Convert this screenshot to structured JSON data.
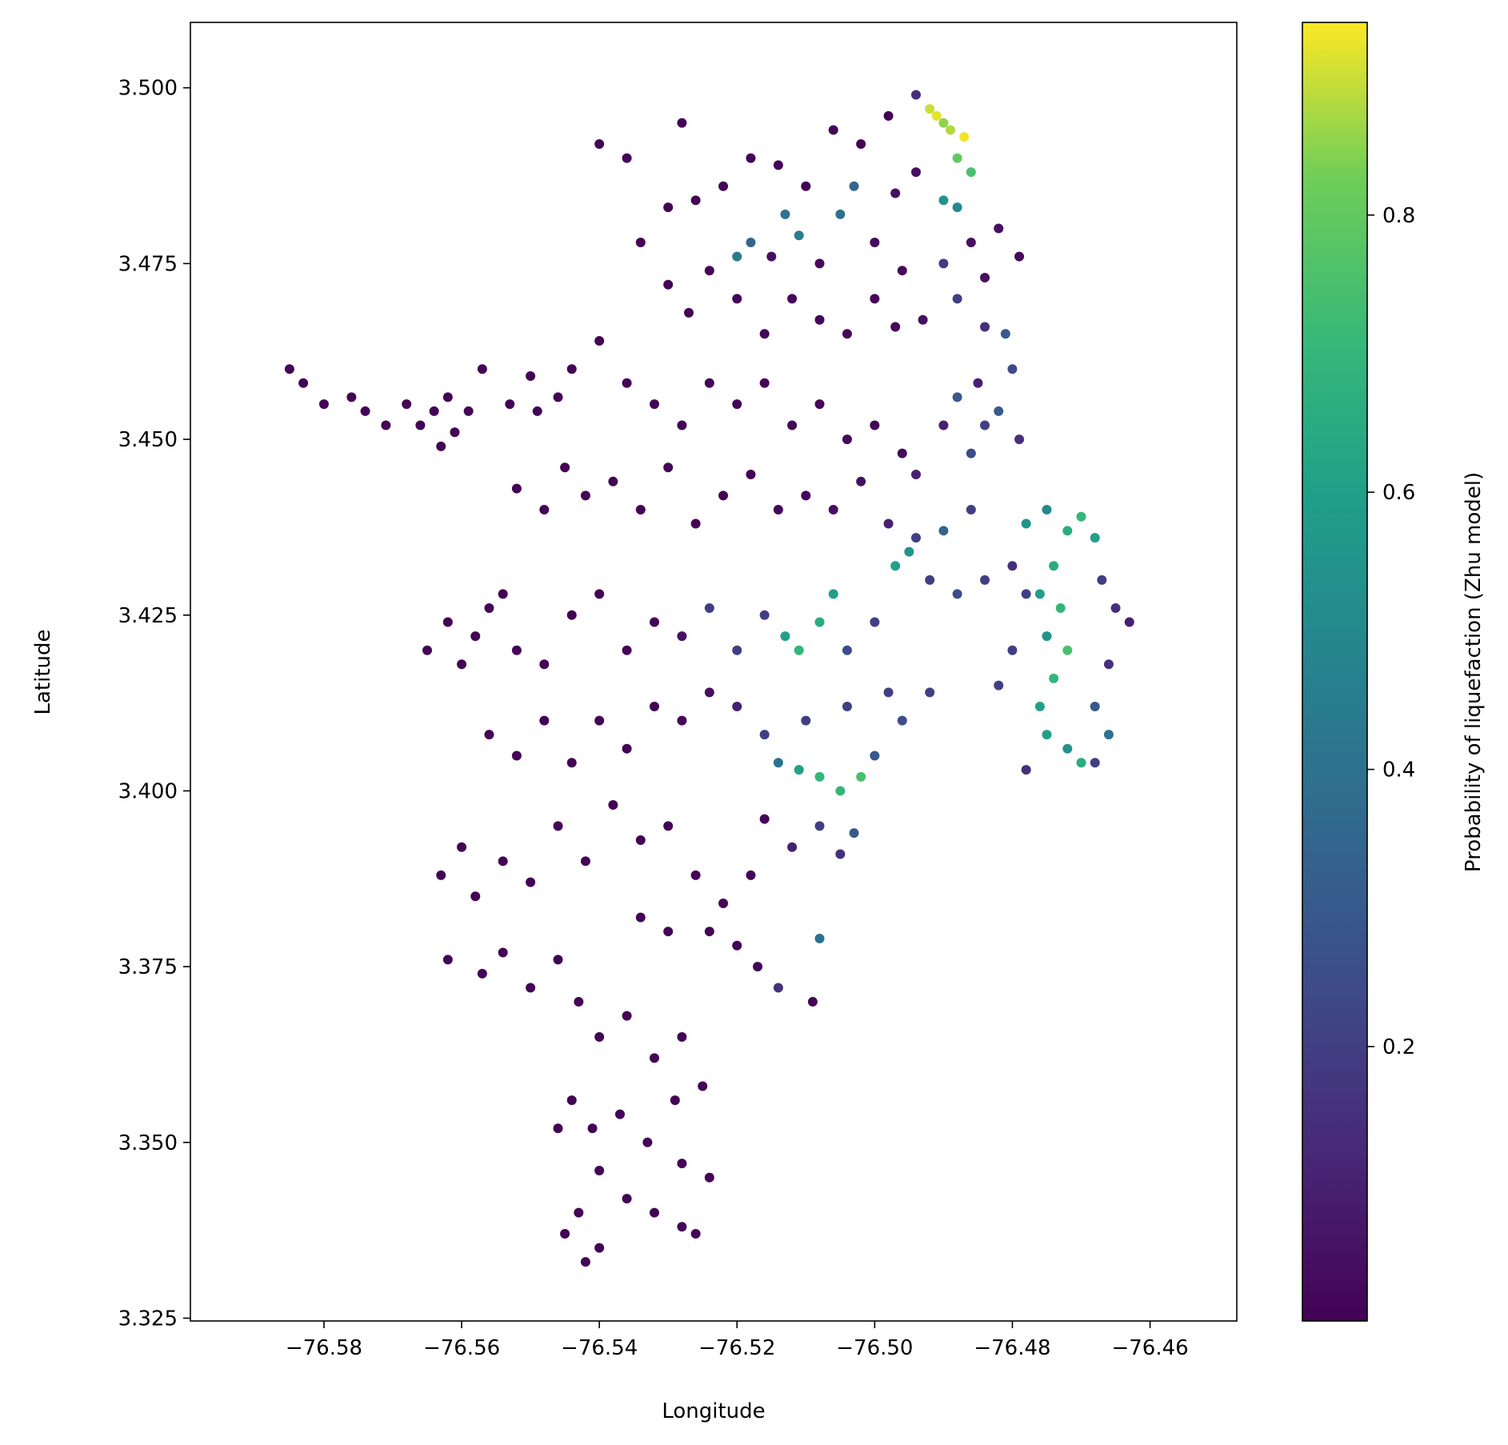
{
  "chart_data": {
    "type": "scatter",
    "title": "",
    "xlabel": "Longitude",
    "ylabel": "Latitude",
    "xlim": [
      -76.5994,
      -76.4474
    ],
    "ylim": [
      3.3246,
      3.5093
    ],
    "xticks": [
      -76.58,
      -76.56,
      -76.54,
      -76.52,
      -76.5,
      -76.48,
      -76.46
    ],
    "xtick_labels": [
      "−76.58",
      "−76.56",
      "−76.54",
      "−76.52",
      "−76.50",
      "−76.48",
      "−76.46"
    ],
    "yticks": [
      3.325,
      3.35,
      3.375,
      3.4,
      3.425,
      3.45,
      3.475,
      3.5
    ],
    "ytick_labels": [
      "3.325",
      "3.350",
      "3.375",
      "3.400",
      "3.425",
      "3.450",
      "3.475",
      "3.500"
    ],
    "grid": false,
    "colorbar": {
      "label": "Probability of liquefaction (Zhu model)",
      "colormap": "viridis",
      "range": [
        0.002,
        0.939
      ],
      "ticks": [
        0.2,
        0.4,
        0.6,
        0.8
      ],
      "tick_labels": [
        "0.2",
        "0.4",
        "0.6",
        "0.8"
      ]
    },
    "points": [
      [
        -76.585,
        3.46,
        0.01
      ],
      [
        -76.583,
        3.458,
        0.01
      ],
      [
        -76.58,
        3.455,
        0.01
      ],
      [
        -76.576,
        3.456,
        0.01
      ],
      [
        -76.574,
        3.454,
        0.01
      ],
      [
        -76.571,
        3.452,
        0.01
      ],
      [
        -76.568,
        3.455,
        0.01
      ],
      [
        -76.566,
        3.452,
        0.01
      ],
      [
        -76.564,
        3.454,
        0.01
      ],
      [
        -76.562,
        3.456,
        0.01
      ],
      [
        -76.561,
        3.451,
        0.01
      ],
      [
        -76.559,
        3.454,
        0.01
      ],
      [
        -76.563,
        3.449,
        0.01
      ],
      [
        -76.557,
        3.46,
        0.01
      ],
      [
        -76.553,
        3.455,
        0.01
      ],
      [
        -76.549,
        3.454,
        0.01
      ],
      [
        -76.546,
        3.456,
        0.01
      ],
      [
        -76.55,
        3.459,
        0.01
      ],
      [
        -76.54,
        3.492,
        0.01
      ],
      [
        -76.536,
        3.49,
        0.01
      ],
      [
        -76.528,
        3.495,
        0.01
      ],
      [
        -76.526,
        3.484,
        0.01
      ],
      [
        -76.53,
        3.483,
        0.01
      ],
      [
        -76.522,
        3.486,
        0.01
      ],
      [
        -76.518,
        3.49,
        0.01
      ],
      [
        -76.514,
        3.489,
        0.01
      ],
      [
        -76.51,
        3.486,
        0.01
      ],
      [
        -76.506,
        3.494,
        0.01
      ],
      [
        -76.502,
        3.492,
        0.01
      ],
      [
        -76.498,
        3.496,
        0.01
      ],
      [
        -76.494,
        3.499,
        0.15
      ],
      [
        -76.492,
        3.497,
        0.9
      ],
      [
        -76.491,
        3.496,
        0.92
      ],
      [
        -76.49,
        3.495,
        0.85
      ],
      [
        -76.489,
        3.494,
        0.88
      ],
      [
        -76.487,
        3.493,
        0.93
      ],
      [
        -76.488,
        3.49,
        0.8
      ],
      [
        -76.486,
        3.488,
        0.75
      ],
      [
        -76.49,
        3.484,
        0.55
      ],
      [
        -76.488,
        3.483,
        0.5
      ],
      [
        -76.494,
        3.488,
        0.05
      ],
      [
        -76.497,
        3.485,
        0.05
      ],
      [
        -76.513,
        3.482,
        0.4
      ],
      [
        -76.511,
        3.479,
        0.45
      ],
      [
        -76.505,
        3.482,
        0.4
      ],
      [
        -76.503,
        3.486,
        0.35
      ],
      [
        -76.518,
        3.478,
        0.35
      ],
      [
        -76.52,
        3.476,
        0.45
      ],
      [
        -76.515,
        3.476,
        0.05
      ],
      [
        -76.508,
        3.475,
        0.03
      ],
      [
        -76.5,
        3.478,
        0.03
      ],
      [
        -76.496,
        3.474,
        0.03
      ],
      [
        -76.49,
        3.475,
        0.2
      ],
      [
        -76.486,
        3.478,
        0.05
      ],
      [
        -76.484,
        3.473,
        0.05
      ],
      [
        -76.482,
        3.48,
        0.05
      ],
      [
        -76.479,
        3.476,
        0.03
      ],
      [
        -76.534,
        3.478,
        0.01
      ],
      [
        -76.53,
        3.472,
        0.01
      ],
      [
        -76.527,
        3.468,
        0.01
      ],
      [
        -76.524,
        3.474,
        0.01
      ],
      [
        -76.52,
        3.47,
        0.01
      ],
      [
        -76.516,
        3.465,
        0.02
      ],
      [
        -76.512,
        3.47,
        0.02
      ],
      [
        -76.508,
        3.467,
        0.02
      ],
      [
        -76.504,
        3.465,
        0.02
      ],
      [
        -76.5,
        3.47,
        0.02
      ],
      [
        -76.497,
        3.466,
        0.02
      ],
      [
        -76.493,
        3.467,
        0.05
      ],
      [
        -76.488,
        3.47,
        0.2
      ],
      [
        -76.484,
        3.466,
        0.15
      ],
      [
        -76.481,
        3.465,
        0.3
      ],
      [
        -76.48,
        3.46,
        0.25
      ],
      [
        -76.485,
        3.458,
        0.1
      ],
      [
        -76.488,
        3.456,
        0.3
      ],
      [
        -76.484,
        3.452,
        0.2
      ],
      [
        -76.482,
        3.454,
        0.3
      ],
      [
        -76.479,
        3.45,
        0.15
      ],
      [
        -76.486,
        3.448,
        0.25
      ],
      [
        -76.49,
        3.452,
        0.1
      ],
      [
        -76.54,
        3.464,
        0.01
      ],
      [
        -76.544,
        3.46,
        0.01
      ],
      [
        -76.536,
        3.458,
        0.01
      ],
      [
        -76.532,
        3.455,
        0.01
      ],
      [
        -76.528,
        3.452,
        0.01
      ],
      [
        -76.524,
        3.458,
        0.01
      ],
      [
        -76.52,
        3.455,
        0.01
      ],
      [
        -76.516,
        3.458,
        0.01
      ],
      [
        -76.512,
        3.452,
        0.02
      ],
      [
        -76.508,
        3.455,
        0.02
      ],
      [
        -76.504,
        3.45,
        0.02
      ],
      [
        -76.5,
        3.452,
        0.02
      ],
      [
        -76.496,
        3.448,
        0.03
      ],
      [
        -76.494,
        3.445,
        0.1
      ],
      [
        -76.552,
        3.443,
        0.01
      ],
      [
        -76.548,
        3.44,
        0.01
      ],
      [
        -76.545,
        3.446,
        0.01
      ],
      [
        -76.542,
        3.442,
        0.01
      ],
      [
        -76.538,
        3.444,
        0.01
      ],
      [
        -76.534,
        3.44,
        0.01
      ],
      [
        -76.53,
        3.446,
        0.01
      ],
      [
        -76.526,
        3.438,
        0.01
      ],
      [
        -76.522,
        3.442,
        0.01
      ],
      [
        -76.518,
        3.445,
        0.01
      ],
      [
        -76.514,
        3.44,
        0.02
      ],
      [
        -76.51,
        3.442,
        0.02
      ],
      [
        -76.506,
        3.44,
        0.05
      ],
      [
        -76.502,
        3.444,
        0.05
      ],
      [
        -76.498,
        3.438,
        0.1
      ],
      [
        -76.494,
        3.436,
        0.2
      ],
      [
        -76.49,
        3.437,
        0.35
      ],
      [
        -76.486,
        3.44,
        0.2
      ],
      [
        -76.562,
        3.424,
        0.01
      ],
      [
        -76.565,
        3.42,
        0.01
      ],
      [
        -76.56,
        3.418,
        0.01
      ],
      [
        -76.558,
        3.422,
        0.01
      ],
      [
        -76.556,
        3.426,
        0.01
      ],
      [
        -76.554,
        3.428,
        0.01
      ],
      [
        -76.552,
        3.42,
        0.01
      ],
      [
        -76.548,
        3.418,
        0.01
      ],
      [
        -76.544,
        3.425,
        0.01
      ],
      [
        -76.54,
        3.428,
        0.01
      ],
      [
        -76.536,
        3.42,
        0.01
      ],
      [
        -76.532,
        3.424,
        0.01
      ],
      [
        -76.528,
        3.422,
        0.05
      ],
      [
        -76.524,
        3.426,
        0.2
      ],
      [
        -76.52,
        3.42,
        0.2
      ],
      [
        -76.516,
        3.425,
        0.2
      ],
      [
        -76.513,
        3.422,
        0.6
      ],
      [
        -76.511,
        3.42,
        0.7
      ],
      [
        -76.508,
        3.424,
        0.65
      ],
      [
        -76.506,
        3.428,
        0.6
      ],
      [
        -76.504,
        3.42,
        0.25
      ],
      [
        -76.5,
        3.424,
        0.2
      ],
      [
        -76.497,
        3.432,
        0.6
      ],
      [
        -76.495,
        3.434,
        0.55
      ],
      [
        -76.492,
        3.43,
        0.2
      ],
      [
        -76.488,
        3.428,
        0.25
      ],
      [
        -76.484,
        3.43,
        0.2
      ],
      [
        -76.48,
        3.432,
        0.15
      ],
      [
        -76.478,
        3.428,
        0.2
      ],
      [
        -76.478,
        3.438,
        0.55
      ],
      [
        -76.475,
        3.44,
        0.5
      ],
      [
        -76.472,
        3.437,
        0.65
      ],
      [
        -76.47,
        3.439,
        0.7
      ],
      [
        -76.468,
        3.436,
        0.6
      ],
      [
        -76.474,
        3.432,
        0.65
      ],
      [
        -76.476,
        3.428,
        0.6
      ],
      [
        -76.473,
        3.426,
        0.7
      ],
      [
        -76.475,
        3.422,
        0.55
      ],
      [
        -76.472,
        3.42,
        0.75
      ],
      [
        -76.474,
        3.416,
        0.7
      ],
      [
        -76.476,
        3.412,
        0.6
      ],
      [
        -76.475,
        3.408,
        0.6
      ],
      [
        -76.472,
        3.406,
        0.55
      ],
      [
        -76.47,
        3.404,
        0.65
      ],
      [
        -76.467,
        3.43,
        0.2
      ],
      [
        -76.465,
        3.426,
        0.15
      ],
      [
        -76.463,
        3.424,
        0.1
      ],
      [
        -76.466,
        3.418,
        0.15
      ],
      [
        -76.468,
        3.412,
        0.3
      ],
      [
        -76.466,
        3.408,
        0.4
      ],
      [
        -76.468,
        3.404,
        0.2
      ],
      [
        -76.478,
        3.403,
        0.15
      ],
      [
        -76.48,
        3.42,
        0.2
      ],
      [
        -76.482,
        3.415,
        0.2
      ],
      [
        -76.556,
        3.408,
        0.01
      ],
      [
        -76.552,
        3.405,
        0.01
      ],
      [
        -76.548,
        3.41,
        0.01
      ],
      [
        -76.544,
        3.404,
        0.01
      ],
      [
        -76.54,
        3.41,
        0.01
      ],
      [
        -76.536,
        3.406,
        0.01
      ],
      [
        -76.532,
        3.412,
        0.01
      ],
      [
        -76.528,
        3.41,
        0.02
      ],
      [
        -76.524,
        3.414,
        0.05
      ],
      [
        -76.52,
        3.412,
        0.1
      ],
      [
        -76.516,
        3.408,
        0.2
      ],
      [
        -76.514,
        3.404,
        0.4
      ],
      [
        -76.511,
        3.403,
        0.6
      ],
      [
        -76.508,
        3.402,
        0.7
      ],
      [
        -76.505,
        3.4,
        0.7
      ],
      [
        -76.502,
        3.402,
        0.75
      ],
      [
        -76.5,
        3.405,
        0.3
      ],
      [
        -76.496,
        3.41,
        0.25
      ],
      [
        -76.492,
        3.414,
        0.2
      ],
      [
        -76.498,
        3.414,
        0.2
      ],
      [
        -76.504,
        3.412,
        0.2
      ],
      [
        -76.51,
        3.41,
        0.2
      ],
      [
        -76.56,
        3.392,
        0.01
      ],
      [
        -76.563,
        3.388,
        0.01
      ],
      [
        -76.558,
        3.385,
        0.01
      ],
      [
        -76.554,
        3.39,
        0.01
      ],
      [
        -76.55,
        3.387,
        0.01
      ],
      [
        -76.546,
        3.395,
        0.01
      ],
      [
        -76.542,
        3.39,
        0.01
      ],
      [
        -76.538,
        3.398,
        0.01
      ],
      [
        -76.534,
        3.393,
        0.01
      ],
      [
        -76.53,
        3.395,
        0.01
      ],
      [
        -76.526,
        3.388,
        0.01
      ],
      [
        -76.522,
        3.384,
        0.01
      ],
      [
        -76.518,
        3.388,
        0.01
      ],
      [
        -76.516,
        3.396,
        0.02
      ],
      [
        -76.512,
        3.392,
        0.1
      ],
      [
        -76.508,
        3.395,
        0.2
      ],
      [
        -76.505,
        3.391,
        0.15
      ],
      [
        -76.503,
        3.394,
        0.3
      ],
      [
        -76.562,
        3.376,
        0.01
      ],
      [
        -76.557,
        3.374,
        0.01
      ],
      [
        -76.554,
        3.377,
        0.01
      ],
      [
        -76.55,
        3.372,
        0.01
      ],
      [
        -76.546,
        3.376,
        0.01
      ],
      [
        -76.534,
        3.382,
        0.01
      ],
      [
        -76.53,
        3.38,
        0.01
      ],
      [
        -76.524,
        3.38,
        0.01
      ],
      [
        -76.52,
        3.378,
        0.01
      ],
      [
        -76.517,
        3.375,
        0.01
      ],
      [
        -76.514,
        3.372,
        0.15
      ],
      [
        -76.508,
        3.379,
        0.4
      ],
      [
        -76.509,
        3.37,
        0.01
      ],
      [
        -76.543,
        3.37,
        0.01
      ],
      [
        -76.54,
        3.365,
        0.01
      ],
      [
        -76.536,
        3.368,
        0.01
      ],
      [
        -76.532,
        3.362,
        0.01
      ],
      [
        -76.528,
        3.365,
        0.01
      ],
      [
        -76.544,
        3.356,
        0.01
      ],
      [
        -76.541,
        3.352,
        0.01
      ],
      [
        -76.537,
        3.354,
        0.01
      ],
      [
        -76.533,
        3.35,
        0.01
      ],
      [
        -76.529,
        3.356,
        0.01
      ],
      [
        -76.525,
        3.358,
        0.01
      ],
      [
        -76.546,
        3.352,
        0.01
      ],
      [
        -76.54,
        3.346,
        0.01
      ],
      [
        -76.528,
        3.347,
        0.01
      ],
      [
        -76.524,
        3.345,
        0.01
      ],
      [
        -76.543,
        3.34,
        0.01
      ],
      [
        -76.536,
        3.342,
        0.01
      ],
      [
        -76.532,
        3.34,
        0.01
      ],
      [
        -76.528,
        3.338,
        0.01
      ],
      [
        -76.54,
        3.335,
        0.01
      ],
      [
        -76.542,
        3.333,
        0.01
      ],
      [
        -76.545,
        3.337,
        0.01
      ],
      [
        -76.526,
        3.337,
        0.01
      ]
    ]
  }
}
